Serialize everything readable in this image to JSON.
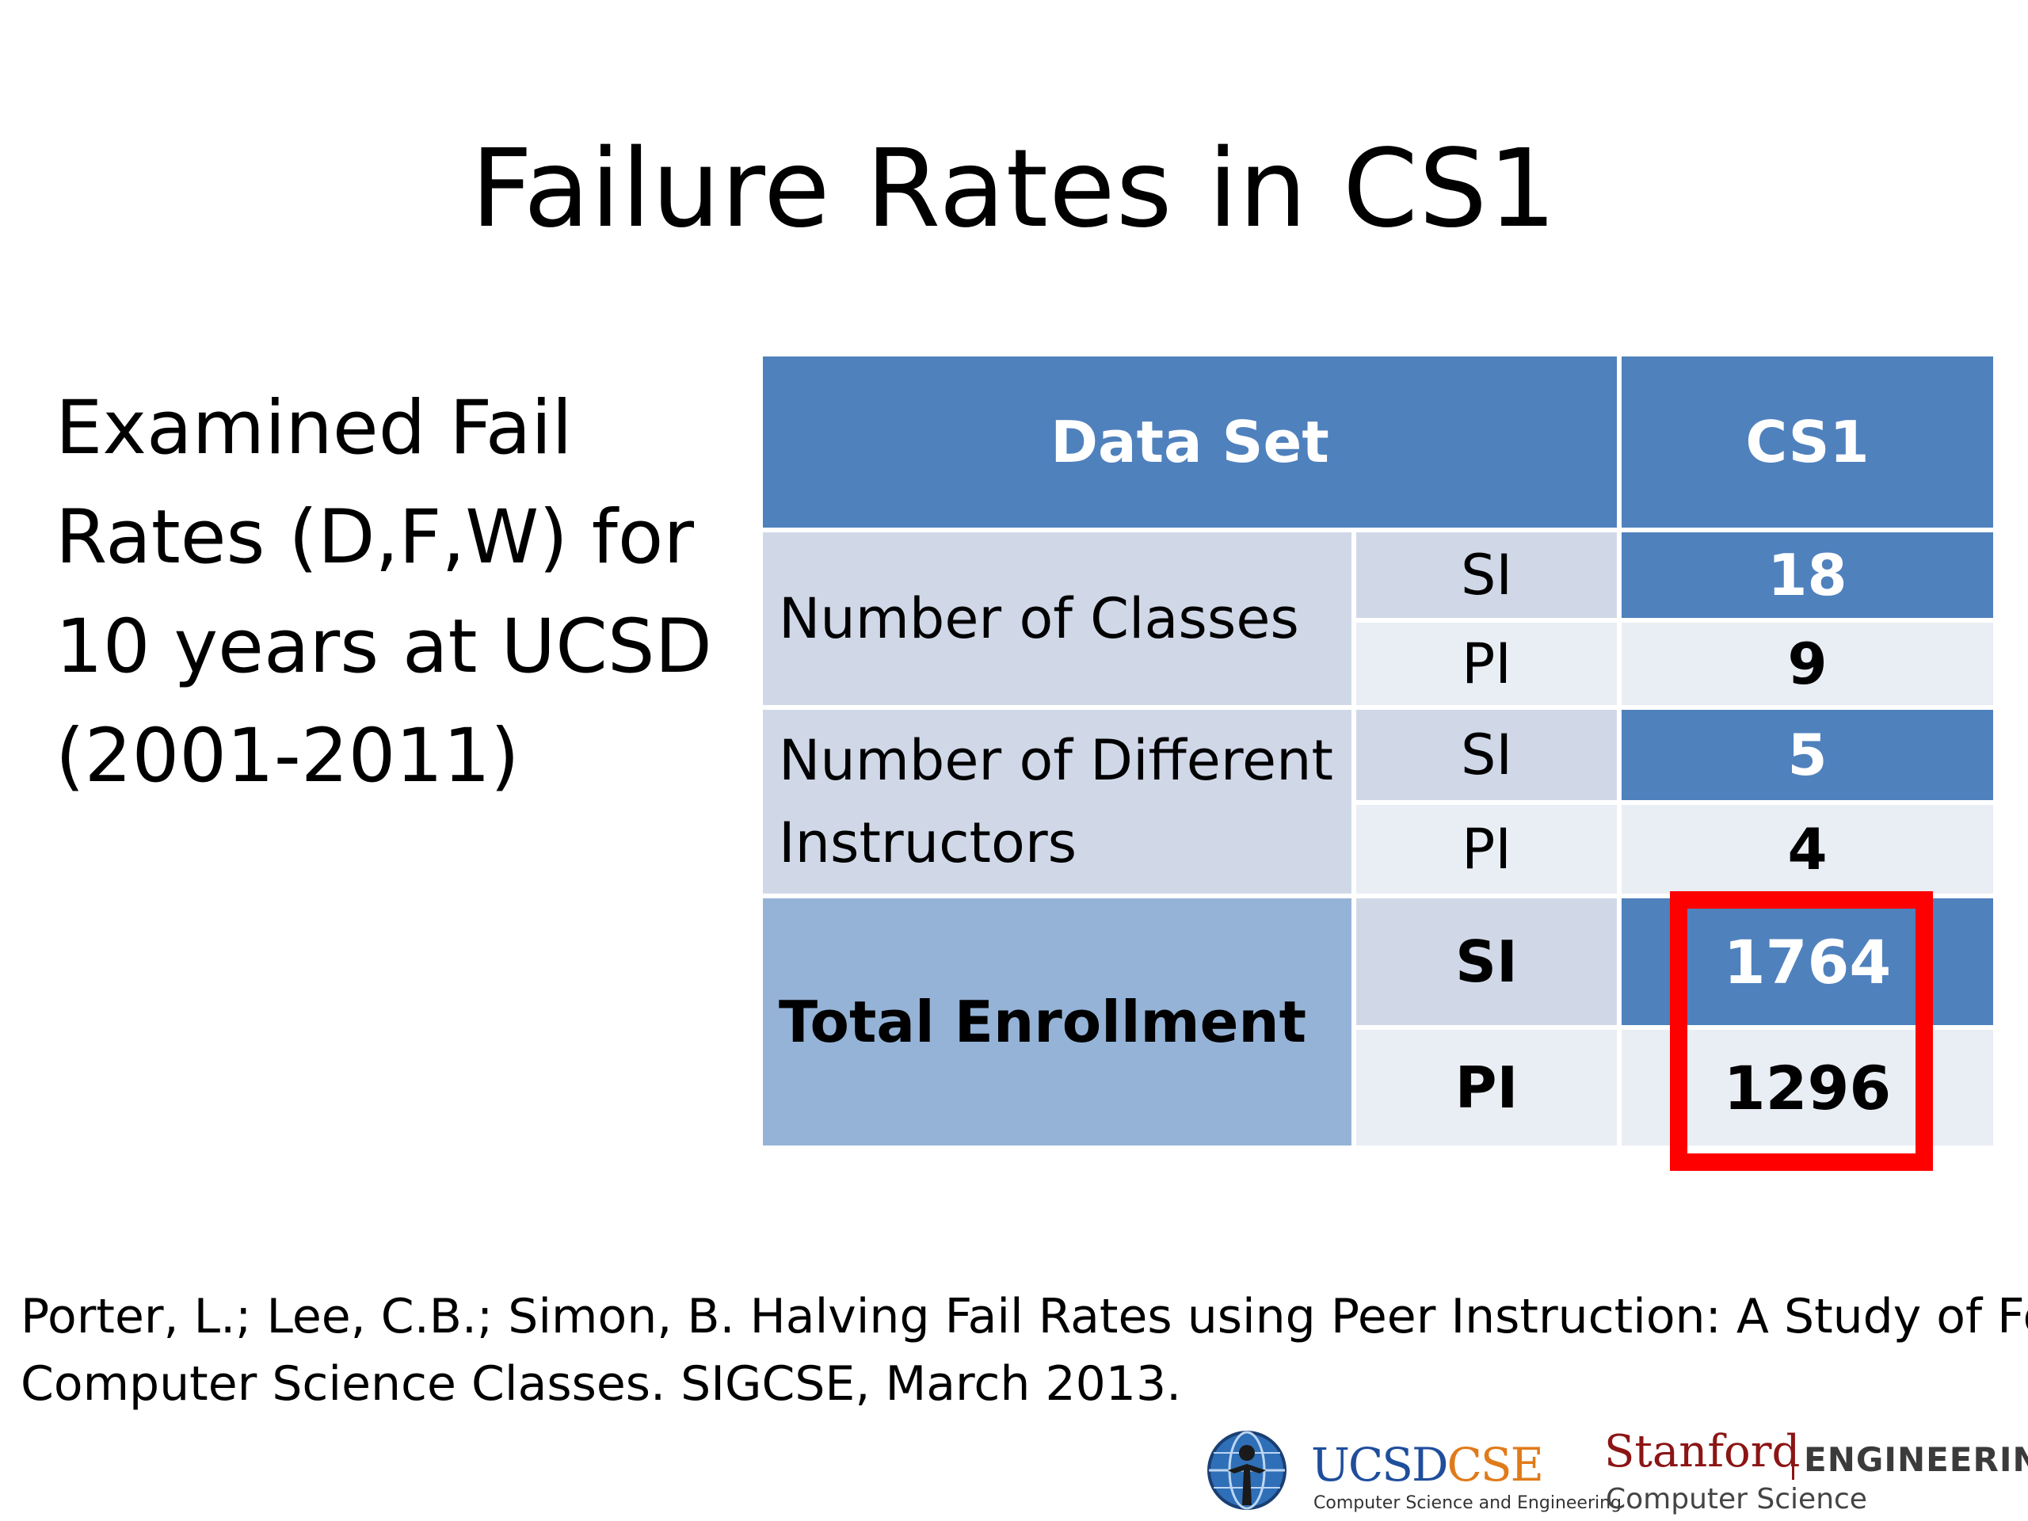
{
  "title": "Failure Rates in CS1",
  "description_lines": [
    "Examined Fail",
    "Rates (D,F,W) for",
    "10 years at UCSD",
    "(2001-2011)"
  ],
  "table": {
    "header_dataset": "Data Set",
    "header_cs1": "CS1",
    "rows": {
      "classes": {
        "label": "Number of Classes",
        "si_label": "SI",
        "si_value": "18",
        "pi_label": "PI",
        "pi_value": "9"
      },
      "instructors": {
        "label_line1": "Number of Different",
        "label_line2": "Instructors",
        "si_label": "SI",
        "si_value": "5",
        "pi_label": "PI",
        "pi_value": "4"
      },
      "enrollment": {
        "label": "Total Enrollment",
        "si_label": "SI",
        "si_value": "1764",
        "pi_label": "PI",
        "pi_value": "1296"
      }
    }
  },
  "citation_lines": [
    "Porter, L.; Lee, C.B.; Simon, B. Halving Fail Rates using Peer Instruction: A Study of Four",
    "Computer Science Classes. SIGCSE, March 2013."
  ],
  "logos": {
    "ucsd_main": "UCSD",
    "ucsd_cse": "CSE",
    "ucsd_sub": "Computer Science and Engineering",
    "stanford_name": "Stanford",
    "stanford_engineering": "ENGINEERING",
    "stanford_cs": "Computer Science"
  },
  "colors": {
    "header_blue": "#4f81bd",
    "label_gray_blue": "#d0d8e8",
    "light_row": "#e9edf4",
    "total_blue": "#95b3d7",
    "highlight_red": "#ff0000"
  }
}
